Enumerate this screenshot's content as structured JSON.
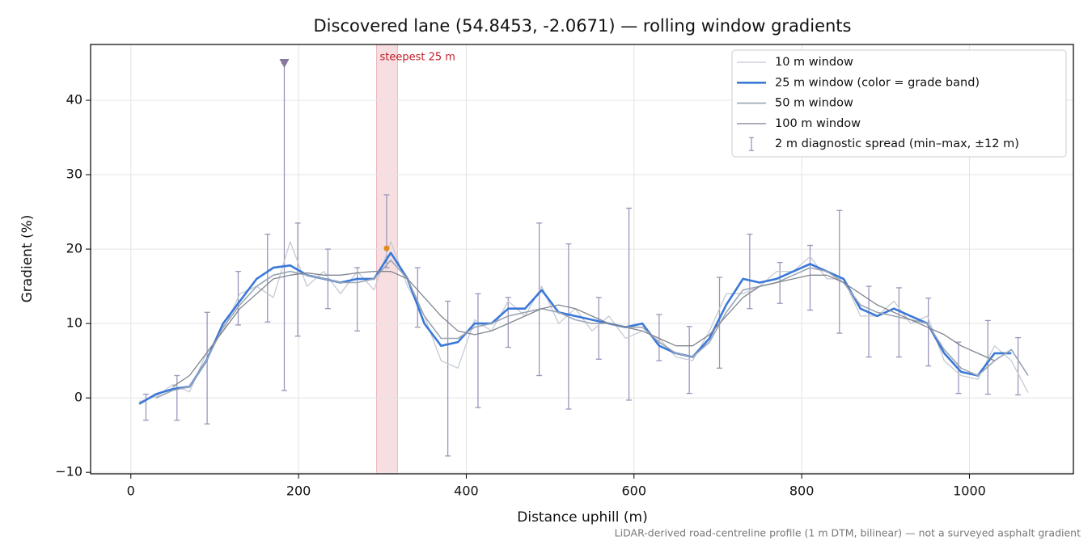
{
  "chart_data": {
    "type": "line",
    "title": "Discovered lane (54.8453, -2.0671) — rolling window gradients",
    "xlabel": "Distance uphill (m)",
    "ylabel": "Gradient (%)",
    "footnote": "LiDAR-derived road-centreline profile (1 m DTM, bilinear) — not a surveyed asphalt gradient",
    "xlim": [
      -48,
      1124
    ],
    "ylim": [
      -10.2,
      47.5
    ],
    "xticks": [
      0,
      200,
      400,
      600,
      800,
      1000
    ],
    "yticks": [
      {
        "value": -10,
        "label": "−10"
      },
      0,
      10,
      20,
      30,
      40
    ],
    "grid": true,
    "legend": "upper right",
    "x": [
      10,
      30,
      50,
      70,
      90,
      110,
      130,
      150,
      170,
      190,
      210,
      230,
      250,
      270,
      290,
      310,
      330,
      350,
      370,
      390,
      410,
      430,
      450,
      470,
      490,
      510,
      530,
      550,
      570,
      590,
      610,
      630,
      650,
      670,
      690,
      710,
      730,
      750,
      770,
      790,
      810,
      830,
      850,
      870,
      890,
      910,
      930,
      950,
      970,
      990,
      1010,
      1030,
      1050,
      1070
    ],
    "series": [
      {
        "name": "10 m window",
        "color": "#c5cbd3",
        "width": 1.3,
        "values": [
          -0.5,
          0.2,
          1.8,
          0.8,
          6,
          9,
          14,
          15,
          13.5,
          21,
          15,
          17,
          14,
          17,
          14.5,
          21,
          15,
          11,
          5,
          4,
          10.5,
          9,
          13,
          11,
          15,
          10,
          12,
          9,
          11,
          8,
          9,
          8,
          5.5,
          5,
          9,
          14,
          14,
          15,
          17,
          17,
          19,
          16,
          16,
          11,
          11,
          13,
          10,
          11,
          5,
          3,
          2.5,
          7,
          5,
          0.7
        ]
      },
      {
        "name": "25 m window (color = grade band)",
        "color": "#3a78d8",
        "width": 2.6,
        "values": [
          -0.8,
          0.5,
          1.2,
          1.5,
          5,
          10,
          13,
          16,
          17.5,
          17.8,
          16.5,
          16,
          15.5,
          16,
          16,
          19.5,
          16,
          10,
          7,
          7.5,
          10,
          10,
          12,
          12,
          14.5,
          11.5,
          11,
          10.5,
          10,
          9.5,
          10,
          7,
          6,
          5.5,
          8,
          12.5,
          16,
          15.5,
          16,
          17,
          18,
          17,
          16,
          12,
          11,
          12,
          11,
          10,
          6,
          3.5,
          3,
          6,
          6,
          null
        ]
      },
      {
        "name": "50 m window",
        "color": "#9aa5b4",
        "width": 1.6,
        "values": [
          null,
          0,
          1,
          1.5,
          5,
          9.5,
          12.5,
          15,
          16.5,
          17,
          16.5,
          16,
          15.5,
          15.5,
          16,
          18.5,
          16,
          11,
          8,
          8,
          9.5,
          10,
          11,
          11.5,
          12,
          11.5,
          10.5,
          10,
          10,
          9.5,
          9.5,
          7.5,
          6,
          5.5,
          7.5,
          11.5,
          14.5,
          15,
          15.5,
          16.5,
          17.5,
          17,
          15.5,
          12.5,
          11.5,
          11,
          10.5,
          10,
          6.5,
          4,
          3,
          5,
          6.5,
          3
        ]
      },
      {
        "name": "100 m window",
        "color": "#80858f",
        "width": 1.3,
        "values": [
          null,
          null,
          1.5,
          3,
          6,
          9,
          12,
          14,
          16,
          16.5,
          16.8,
          16.5,
          16.5,
          16.8,
          17,
          17,
          16,
          13.5,
          11,
          9,
          8.5,
          9,
          10,
          11,
          12,
          12.5,
          12,
          11,
          10,
          9.5,
          9,
          8,
          7,
          7,
          8.5,
          11,
          13.5,
          15,
          15.5,
          16,
          16.5,
          16.5,
          15.5,
          14,
          12.5,
          11.5,
          10.5,
          9.5,
          8.5,
          7,
          6,
          5,
          null,
          null
        ]
      }
    ],
    "errorbars": {
      "name": "2 m diagnostic spread (min–max, ±12 m)",
      "color": "#9b96bb",
      "x": [
        18,
        55,
        91,
        128,
        163,
        183,
        199,
        235,
        270,
        305,
        342,
        378,
        414,
        450,
        487,
        522,
        558,
        594,
        630,
        666,
        702,
        738,
        774,
        810,
        845,
        880,
        916,
        951,
        987,
        1022,
        1058
      ],
      "low": [
        -3,
        -3,
        -3.5,
        9.8,
        10.2,
        1,
        8.3,
        12,
        9,
        17.5,
        9.5,
        -7.8,
        -1.3,
        6.8,
        3,
        -1.5,
        5.2,
        -0.3,
        5,
        0.6,
        4,
        12,
        12.7,
        11.8,
        8.7,
        5.5,
        5.5,
        4.3,
        0.6,
        0.5,
        0.4
      ],
      "high": [
        0.5,
        3,
        11.5,
        17,
        22,
        45,
        23.5,
        20,
        17.5,
        27.3,
        17.5,
        13,
        14,
        13.5,
        23.5,
        20.7,
        13.5,
        25.5,
        11.2,
        9.6,
        16.2,
        22,
        18.2,
        20.5,
        25.2,
        15,
        14.8,
        13.4,
        7.5,
        10.4,
        8.1
      ]
    },
    "outlier_marker": {
      "x": 183,
      "y": 45,
      "color": "#8878a0"
    },
    "highlight": {
      "x": [
        293,
        318
      ],
      "label": "steepest 25 m",
      "color": "#e8a0aa"
    },
    "peak": {
      "x": 305,
      "y": 20.1,
      "color": "#e08a20"
    }
  }
}
